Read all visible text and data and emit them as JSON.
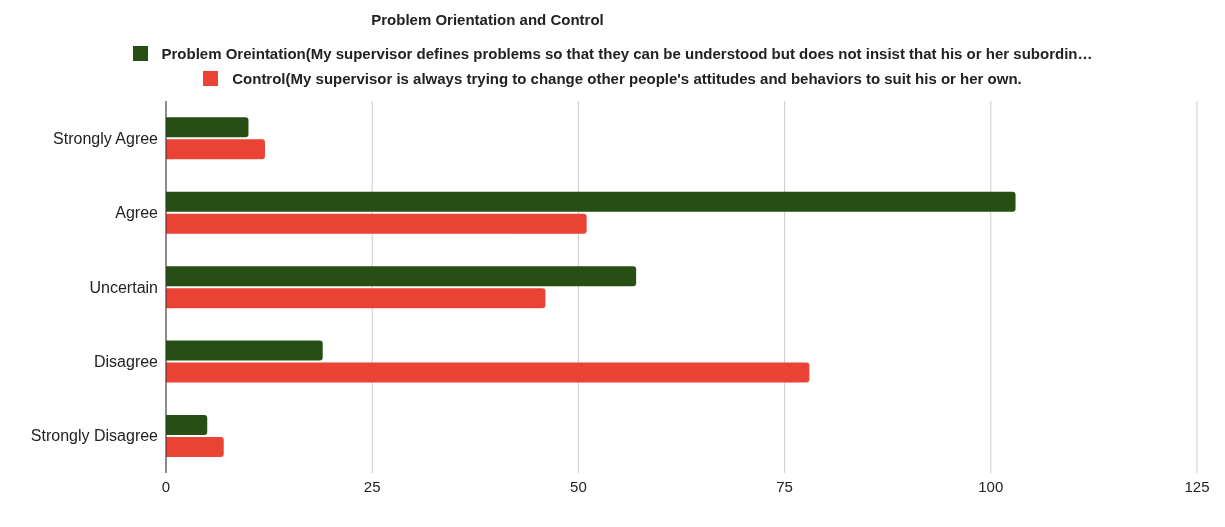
{
  "chart_data": {
    "type": "bar",
    "orientation": "horizontal",
    "title": "Problem Orientation and Control",
    "categories": [
      "Strongly Agree",
      "Agree",
      "Uncertain",
      "Disagree",
      "Strongly Disagree"
    ],
    "series": [
      {
        "name": "Problem Oreintation(My supervisor defines problems so that they can be understood but does not insist that his or her subordin…",
        "color": "#274e13",
        "values": [
          10,
          103,
          57,
          19,
          5
        ]
      },
      {
        "name": "Control(My supervisor is always trying to change other people's attitudes and behaviors to suit his or her own.",
        "color": "#ea4335",
        "values": [
          12,
          51,
          46,
          78,
          7
        ]
      }
    ],
    "xlim": [
      0,
      125
    ],
    "xticks": [
      0,
      25,
      50,
      75,
      100,
      125
    ],
    "grid": "x",
    "legend": "top"
  }
}
